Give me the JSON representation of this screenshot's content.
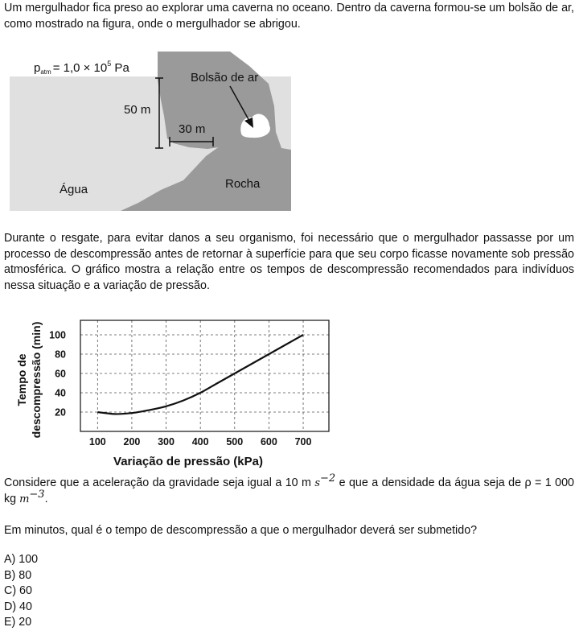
{
  "intro": "Um mergulhador fica preso ao explorar uma caverna no oceano. Dentro da caverna formou-se um bolsão de ar, como mostrado na figura, onde o mergulhador se abrigou.",
  "figure1": {
    "patm_symbol": "p",
    "patm_subscript": "atm",
    "patm_value": "= 1,0 × 10",
    "patm_exponent": "5",
    "patm_unit": " Pa",
    "depth_label": "50 m",
    "width_label": "30 m",
    "air_pocket_label": "Bolsão de ar",
    "water_label": "Água",
    "rock_label": "Rocha"
  },
  "context": "Durante o resgate, para evitar danos a seu organismo, foi necessário que o mergulhador passasse por um processo de descompressão antes de retornar à superfície para que seu corpo ficasse novamente sob pressão atmosférica. O gráfico mostra a relação entre os tempos de descompressão recomendados para indivíduos nessa situação e a variação de pressão.",
  "chart_data": {
    "type": "line",
    "xlabel": "Variação de pressão (kPa)",
    "ylabel_line1": "Tempo de",
    "ylabel_line2": "descompressão (min)",
    "xticks": [
      "100",
      "200",
      "300",
      "400",
      "500",
      "600",
      "700"
    ],
    "yticks": [
      "20",
      "40",
      "60",
      "80",
      "100"
    ],
    "xlim": [
      50,
      775
    ],
    "ylim": [
      0,
      115
    ],
    "grid": true,
    "series": [
      {
        "x": [
          100,
          150,
          200,
          250,
          300,
          350,
          400,
          450,
          500,
          550,
          600,
          650,
          700
        ],
        "y": [
          20,
          18,
          19,
          22,
          26,
          32,
          40,
          50,
          60,
          70,
          80,
          90,
          100
        ]
      }
    ]
  },
  "consider": {
    "before": "Considere que a aceleração da gravidade seja igual a 10 m ",
    "g_unit_symbol": "s",
    "g_unit_exp": "−2",
    "middle": " e que a densidade da água seja de ρ = 1 000 kg ",
    "rho_unit_symbol": "m",
    "rho_unit_exp": "−3",
    "after": "."
  },
  "question": "Em minutos, qual é o tempo de descompressão a que o mergulhador deverá ser submetido?",
  "options": [
    "A) 100",
    "B) 80",
    "C) 60",
    "D) 40",
    "E) 20"
  ]
}
